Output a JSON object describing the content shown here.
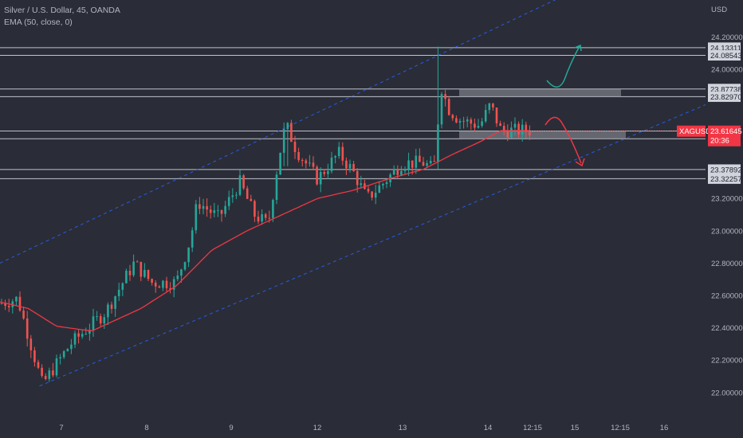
{
  "legend": {
    "title": "Silver / U.S. Dollar, 45, OANDA",
    "indicator": "EMA (50, close, 0)"
  },
  "colors": {
    "background": "#2a2d37",
    "up": "#26a69a",
    "down": "#ef5350",
    "ema": "#f23645",
    "channel": "#2962ff",
    "level_line": "#d1d4dc",
    "zone": "#9598a1",
    "arrow_up": "#26a69a",
    "arrow_down": "#f23645"
  },
  "chart_data": {
    "type": "candlestick",
    "currency_label": "USD",
    "y_axis": {
      "range": [
        21.94,
        24.29
      ],
      "ticks": [
        "24.20000",
        "24.00000",
        "23.20000",
        "23.00000",
        "22.80000",
        "22.60000",
        "22.40000",
        "22.20000",
        "22.00000"
      ]
    },
    "x_axis": {
      "ticks": [
        "7",
        "8",
        "9",
        "12",
        "13",
        "14",
        "12:15",
        "15",
        "12:15",
        "16"
      ]
    },
    "price_levels": [
      "24.13311",
      "24.08543",
      "23.87738",
      "23.82970",
      "23.61731",
      "23.56963",
      "23.37892",
      "23.32257"
    ],
    "current_price": {
      "symbol": "XAGUSD",
      "price": "23.61645",
      "countdown": "20:36"
    },
    "zones": [
      {
        "from": 23.829,
        "to": 23.877
      },
      {
        "from": 23.569,
        "to": 23.617
      }
    ],
    "channel": {
      "upper": [
        {
          "t": 0,
          "price": 22.8
        },
        {
          "t": 1.0,
          "price": 24.87
        }
      ],
      "lower": [
        {
          "t": 0.056,
          "price": 22.04
        },
        {
          "t": 1.0,
          "price": 23.78
        }
      ]
    },
    "anchors": [
      {
        "t": 0.0,
        "price": 22.55
      },
      {
        "t": 0.025,
        "price": 22.58
      },
      {
        "t": 0.06,
        "price": 22.05
      },
      {
        "t": 0.1,
        "price": 22.3
      },
      {
        "t": 0.15,
        "price": 22.5
      },
      {
        "t": 0.19,
        "price": 22.8
      },
      {
        "t": 0.215,
        "price": 22.68
      },
      {
        "t": 0.25,
        "price": 22.68
      },
      {
        "t": 0.27,
        "price": 22.95
      },
      {
        "t": 0.28,
        "price": 23.18
      },
      {
        "t": 0.31,
        "price": 23.08
      },
      {
        "t": 0.34,
        "price": 23.3
      },
      {
        "t": 0.36,
        "price": 23.1
      },
      {
        "t": 0.38,
        "price": 23.04
      },
      {
        "t": 0.395,
        "price": 23.45
      },
      {
        "t": 0.405,
        "price": 23.66
      },
      {
        "t": 0.42,
        "price": 23.5
      },
      {
        "t": 0.45,
        "price": 23.32
      },
      {
        "t": 0.48,
        "price": 23.48
      },
      {
        "t": 0.5,
        "price": 23.37
      },
      {
        "t": 0.52,
        "price": 23.2
      },
      {
        "t": 0.54,
        "price": 23.28
      },
      {
        "t": 0.57,
        "price": 23.42
      },
      {
        "t": 0.6,
        "price": 23.42
      },
      {
        "t": 0.615,
        "price": 23.38
      },
      {
        "t": 0.625,
        "price": 23.9
      },
      {
        "t": 0.635,
        "price": 23.76
      },
      {
        "t": 0.65,
        "price": 23.69
      },
      {
        "t": 0.68,
        "price": 23.65
      },
      {
        "t": 0.695,
        "price": 23.78
      },
      {
        "t": 0.71,
        "price": 23.62
      }
    ],
    "ema_anchors": [
      {
        "t": 0.0,
        "price": 22.56
      },
      {
        "t": 0.04,
        "price": 22.52
      },
      {
        "t": 0.08,
        "price": 22.41
      },
      {
        "t": 0.13,
        "price": 22.38
      },
      {
        "t": 0.2,
        "price": 22.52
      },
      {
        "t": 0.25,
        "price": 22.66
      },
      {
        "t": 0.3,
        "price": 22.88
      },
      {
        "t": 0.35,
        "price": 23.0
      },
      {
        "t": 0.4,
        "price": 23.1
      },
      {
        "t": 0.45,
        "price": 23.2
      },
      {
        "t": 0.5,
        "price": 23.25
      },
      {
        "t": 0.55,
        "price": 23.32
      },
      {
        "t": 0.6,
        "price": 23.38
      },
      {
        "t": 0.64,
        "price": 23.47
      },
      {
        "t": 0.68,
        "price": 23.55
      },
      {
        "t": 0.71,
        "price": 23.62
      }
    ],
    "spikes": [
      {
        "t": 0.62,
        "high": 24.14,
        "low": 23.38
      },
      {
        "t": 0.405,
        "high": 23.67,
        "low": 23.4
      }
    ]
  }
}
